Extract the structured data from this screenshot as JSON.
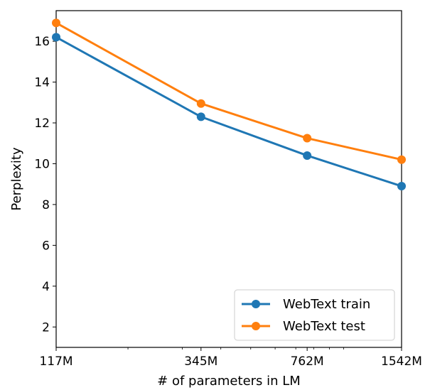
{
  "chart_data": {
    "type": "line",
    "x_scale": "log",
    "categories": [
      "117M",
      "345M",
      "762M",
      "1542M"
    ],
    "x": [
      117,
      345,
      762,
      1542
    ],
    "xlabel": "# of parameters in LM",
    "ylabel": "Perplexity",
    "ylim": [
      1,
      17.5
    ],
    "yticks": [
      2,
      4,
      6,
      8,
      10,
      12,
      14,
      16
    ],
    "grid": false,
    "legend_position": "lower-right",
    "series": [
      {
        "name": "WebText train",
        "color": "#1f77b4",
        "values": [
          16.2,
          12.3,
          10.4,
          8.9
        ]
      },
      {
        "name": "WebText test",
        "color": "#ff7f0e",
        "values": [
          16.9,
          12.95,
          11.25,
          10.2
        ]
      }
    ]
  }
}
